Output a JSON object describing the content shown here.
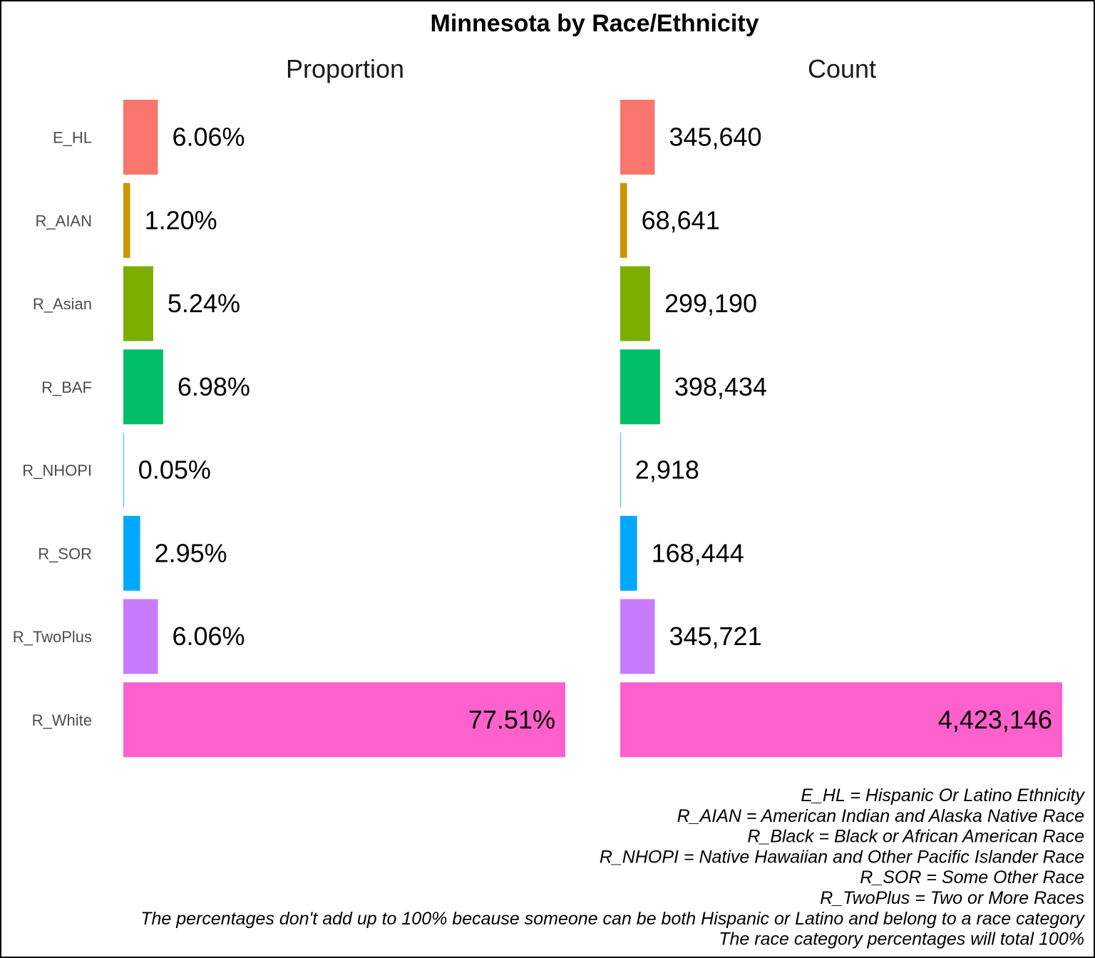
{
  "chart_data": {
    "type": "bar",
    "orientation": "horizontal",
    "title": "Minnesota by Race/Ethnicity",
    "categories": [
      "E_HL",
      "R_AIAN",
      "R_Asian",
      "R_BAF",
      "R_NHOPI",
      "R_SOR",
      "R_TwoPlus",
      "R_White"
    ],
    "colors": [
      "#F8766D",
      "#CD9600",
      "#7CAE00",
      "#00BE67",
      "#00BFC4",
      "#00A9FF",
      "#C77CFF",
      "#FF61CC"
    ],
    "panels": [
      {
        "title": "Proportion",
        "values": [
          6.06,
          1.2,
          5.24,
          6.98,
          0.05,
          2.95,
          6.06,
          77.51
        ],
        "labels": [
          "6.06%",
          "1.20%",
          "5.24%",
          "6.98%",
          "0.05%",
          "2.95%",
          "6.06%",
          "77.51%"
        ]
      },
      {
        "title": "Count",
        "values": [
          345640,
          68641,
          299190,
          398434,
          2918,
          168444,
          345721,
          4423146
        ],
        "labels": [
          "345,640",
          "68,641",
          "299,190",
          "398,434",
          "2,918",
          "168,444",
          "345,721",
          "4,423,146"
        ]
      }
    ],
    "grid": false,
    "legend": "none",
    "caption_lines": [
      "E_HL = Hispanic Or Latino Ethnicity",
      "R_AIAN = American Indian and Alaska Native Race",
      "R_Black = Black or African American Race",
      "R_NHOPI = Native Hawaiian and Other Pacific Islander Race",
      "R_SOR = Some Other Race",
      "R_TwoPlus = Two or More Races",
      "The percentages don't add up to 100% because someone can be both Hispanic or Latino and belong to a race category",
      "The race category percentages will total 100%"
    ]
  }
}
